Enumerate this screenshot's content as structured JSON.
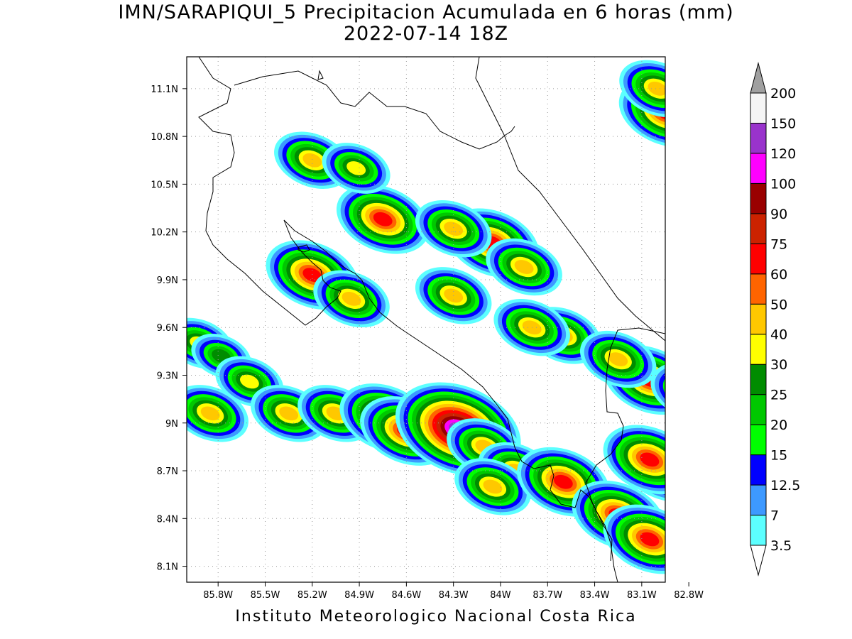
{
  "title": {
    "line1": "IMN/SARAPIQUI_5 Precipitacion Acumulada en 6 horas (mm)",
    "line2": "2022-07-14 18Z"
  },
  "footer": "Instituto Meteorologico Nacional Costa Rica",
  "map": {
    "lon_range": [
      -86.0,
      -82.95
    ],
    "lat_range": [
      8.0,
      11.3
    ],
    "x_ticks": [
      "85.8W",
      "85.5W",
      "85.2W",
      "84.9W",
      "84.6W",
      "84.3W",
      "84W",
      "83.7W",
      "83.4W",
      "83.1W",
      "82.8W"
    ],
    "x_tick_values": [
      -85.8,
      -85.5,
      -85.2,
      -84.9,
      -84.6,
      -84.3,
      -84.0,
      -83.7,
      -83.4,
      -83.1,
      -82.8
    ],
    "y_ticks": [
      "8.1N",
      "8.4N",
      "8.7N",
      "9N",
      "9.3N",
      "9.6N",
      "9.9N",
      "10.2N",
      "10.5N",
      "10.8N",
      "11.1N"
    ],
    "y_tick_values": [
      8.1,
      8.4,
      8.7,
      9.0,
      9.3,
      9.6,
      9.9,
      10.2,
      10.5,
      10.8,
      11.1
    ],
    "grid": true,
    "precip_cells": [
      {
        "lon": -85.92,
        "lat": 9.5,
        "mm": 30
      },
      {
        "lon": -85.78,
        "lat": 9.42,
        "mm": 25
      },
      {
        "lon": -85.6,
        "lat": 9.26,
        "mm": 30
      },
      {
        "lon": -85.35,
        "lat": 9.06,
        "mm": 40
      },
      {
        "lon": -85.05,
        "lat": 9.06,
        "mm": 40
      },
      {
        "lon": -85.85,
        "lat": 9.06,
        "mm": 40
      },
      {
        "lon": -84.73,
        "lat": 9.03,
        "mm": 60
      },
      {
        "lon": -84.6,
        "lat": 8.95,
        "mm": 60
      },
      {
        "lon": -84.27,
        "lat": 8.96,
        "mm": 120
      },
      {
        "lon": -84.1,
        "lat": 8.85,
        "mm": 40
      },
      {
        "lon": -83.9,
        "lat": 8.7,
        "mm": 40
      },
      {
        "lon": -84.05,
        "lat": 8.6,
        "mm": 40
      },
      {
        "lon": -83.6,
        "lat": 8.63,
        "mm": 60
      },
      {
        "lon": -83.25,
        "lat": 8.42,
        "mm": 60
      },
      {
        "lon": -83.05,
        "lat": 8.27,
        "mm": 60
      },
      {
        "lon": -82.95,
        "lat": 8.72,
        "mm": 60
      },
      {
        "lon": -83.05,
        "lat": 8.77,
        "mm": 60
      },
      {
        "lon": -84.75,
        "lat": 10.28,
        "mm": 60
      },
      {
        "lon": -85.2,
        "lat": 10.65,
        "mm": 40
      },
      {
        "lon": -85.2,
        "lat": 9.93,
        "mm": 60
      },
      {
        "lon": -84.95,
        "lat": 9.78,
        "mm": 40
      },
      {
        "lon": -84.05,
        "lat": 10.13,
        "mm": 60
      },
      {
        "lon": -83.85,
        "lat": 9.98,
        "mm": 40
      },
      {
        "lon": -84.3,
        "lat": 10.22,
        "mm": 40
      },
      {
        "lon": -84.92,
        "lat": 10.6,
        "mm": 30
      },
      {
        "lon": -82.95,
        "lat": 10.95,
        "mm": 60
      },
      {
        "lon": -83.0,
        "lat": 11.1,
        "mm": 40
      },
      {
        "lon": -83.05,
        "lat": 9.27,
        "mm": 60
      },
      {
        "lon": -82.8,
        "lat": 9.2,
        "mm": 40
      },
      {
        "lon": -83.6,
        "lat": 9.55,
        "mm": 40
      },
      {
        "lon": -83.8,
        "lat": 9.6,
        "mm": 40
      },
      {
        "lon": -84.3,
        "lat": 9.8,
        "mm": 40
      },
      {
        "lon": -83.25,
        "lat": 9.4,
        "mm": 40
      }
    ]
  },
  "legend": {
    "labels": [
      "3.5",
      "7",
      "12.5",
      "15",
      "20",
      "25",
      "30",
      "40",
      "50",
      "60",
      "75",
      "90",
      "100",
      "120",
      "150",
      "200"
    ],
    "colors": [
      "#ffffff",
      "#5cffff",
      "#3d99ff",
      "#0000ff",
      "#00ff00",
      "#00c800",
      "#008c00",
      "#ffff00",
      "#ffc800",
      "#ff6400",
      "#ff0000",
      "#cc2200",
      "#990000",
      "#ff00ff",
      "#9933cc",
      "#f5f5f5",
      "#a0a0a0"
    ]
  }
}
